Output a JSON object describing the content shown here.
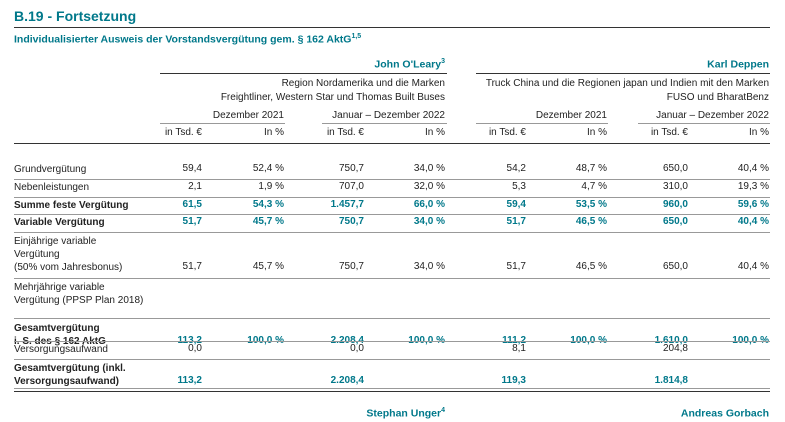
{
  "section_title": "B.19 - Fortsetzung",
  "subtitle": "Individualisierter Ausweis der Vorstandsvergütung gem. § 162 AktG",
  "subtitle_sup": "1,5",
  "persons": [
    {
      "name": "John O'Leary",
      "sup": "3",
      "desc1": "Region Nordamerika und die Marken",
      "desc2": "Freightliner, Western Star und Thomas Built Buses"
    },
    {
      "name": "Karl Deppen",
      "sup": "",
      "desc1": "Truck China und die Regionen japan und Indien mit den Marken",
      "desc2": "FUSO und BharatBenz"
    }
  ],
  "periods": [
    "Dezember 2021",
    "Januar – Dezember 2022",
    "Dezember 2021",
    "Januar – Dezember 2022"
  ],
  "units": [
    "in Tsd. €",
    "In %",
    "in Tsd. €",
    "In %",
    "in Tsd. €",
    "In %",
    "in Tsd. €",
    "In %"
  ],
  "rows": [
    {
      "label": [
        "Grundvergütung"
      ],
      "values": [
        "59,4",
        "52,4 %",
        "750,7",
        "34,0 %",
        "54,2",
        "48,7 %",
        "650,0",
        "40,4 %"
      ]
    },
    {
      "label": [
        "Nebenleistungen"
      ],
      "values": [
        "2,1",
        "1,9 %",
        "707,0",
        "32,0 %",
        "5,3",
        "4,7 %",
        "310,0",
        "19,3 %"
      ]
    },
    {
      "label": [
        "Summe feste Vergütung"
      ],
      "values": [
        "61,5",
        "54,3 %",
        "1.457,7",
        "66,0 %",
        "59,4",
        "53,5 %",
        "960,0",
        "59,6 %"
      ]
    },
    {
      "label": [
        "Variable Vergütung"
      ],
      "values": [
        "51,7",
        "45,7 %",
        "750,7",
        "34,0 %",
        "51,7",
        "46,5 %",
        "650,0",
        "40,4 %"
      ]
    },
    {
      "label": [
        "Einjährige variable",
        "Vergütung",
        "(50% vom Jahresbonus)"
      ],
      "values": [
        "51,7",
        "45,7 %",
        "750,7",
        "34,0 %",
        "51,7",
        "46,5 %",
        "650,0",
        "40,4 %"
      ]
    },
    {
      "label": [
        "Mehrjährige variable",
        "Vergütung (PPSP Plan 2018)"
      ],
      "values": [
        "",
        "",
        "",
        "",
        "",
        "",
        "",
        ""
      ]
    },
    {
      "label": [
        "Gesamtvergütung",
        "i. S. des § 162 AktG"
      ],
      "values": [
        "113,2",
        "100,0 %",
        "2.208,4",
        "100,0 %",
        "111,2",
        "100,0 %",
        "1.610,0",
        "100,0 %"
      ]
    },
    {
      "label": [
        "Versorgungsaufwand"
      ],
      "values": [
        "0,0",
        "",
        "0,0",
        "",
        "8,1",
        "",
        "204,8",
        ""
      ]
    },
    {
      "label": [
        "Gesamtvergütung (inkl.",
        "Versorgungsaufwand)"
      ],
      "values": [
        "113,2",
        "",
        "2.208,4",
        "",
        "119,3",
        "",
        "1.814,8",
        ""
      ]
    }
  ],
  "footer_persons": [
    {
      "name": "Stephan Unger",
      "sup": "4"
    },
    {
      "name": "Andreas Gorbach",
      "sup": ""
    }
  ],
  "colors": {
    "accent": "#00788a",
    "text": "#222222",
    "rule": "#333333"
  }
}
